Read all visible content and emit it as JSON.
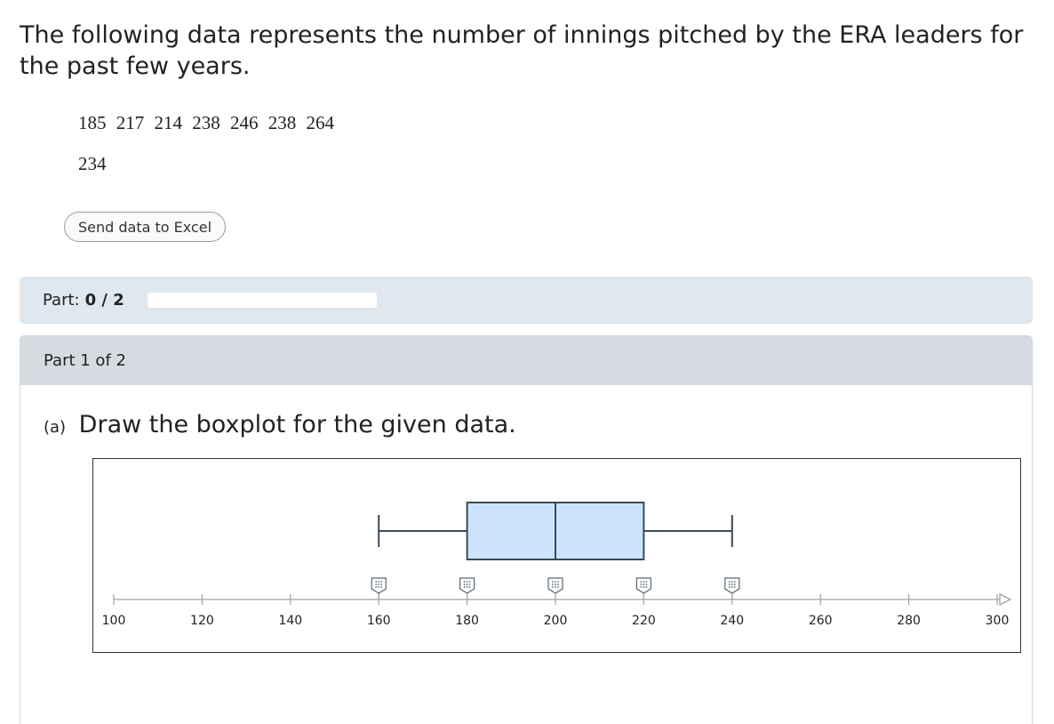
{
  "prompt": {
    "text": "The following data represents the number of innings pitched by the ERA leaders for the past few years."
  },
  "data_values": {
    "row1": "185  217  214  238  246  238  264",
    "row2": "234"
  },
  "excel_button": {
    "label": "Send data to Excel"
  },
  "part_status": {
    "label": "Part:",
    "score": "0 / 2",
    "progress": 0
  },
  "part_panel": {
    "header": "Part 1 of 2",
    "question_letter": "(a)",
    "question_text": "Draw the boxplot for the given data."
  },
  "chart_data": {
    "type": "boxplot",
    "title": "",
    "xlabel": "",
    "ylabel": "",
    "xlim": [
      100,
      300
    ],
    "ticks": [
      100,
      120,
      140,
      160,
      180,
      200,
      220,
      240,
      260,
      280,
      300
    ],
    "tick_labels": [
      "100",
      "120",
      "140",
      "160",
      "180",
      "200",
      "220",
      "240",
      "260",
      "280",
      "300"
    ],
    "box": {
      "min": 160,
      "q1": 180,
      "median": 200,
      "q3": 220,
      "max": 240
    },
    "handles": [
      160,
      180,
      200,
      220,
      240
    ],
    "colors": {
      "box_fill": "#cce4fb",
      "stroke": "#3b4a57",
      "axis": "#9aa3ab",
      "handle": "#5a6670"
    },
    "icons": {
      "handle": "drag-handle-icon",
      "axis_end": "arrow-right-icon"
    }
  }
}
